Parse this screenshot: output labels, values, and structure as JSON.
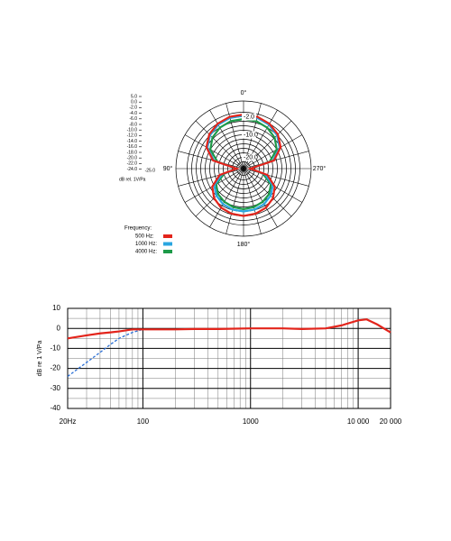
{
  "chart_data": [
    {
      "type": "polar",
      "axis_label": "dB rel. 1V/Pa",
      "legend_title": "Frequency:",
      "rlim": [
        -25,
        5
      ],
      "rticks": [
        {
          "value": 5,
          "label": "5.0"
        },
        {
          "value": 0,
          "label": "0.0"
        },
        {
          "value": -2,
          "label": "-2.0"
        },
        {
          "value": -4,
          "label": "-4.0"
        },
        {
          "value": -6,
          "label": "-6.0"
        },
        {
          "value": -8,
          "label": "-8.0"
        },
        {
          "value": -10,
          "label": "-10.0"
        },
        {
          "value": -12,
          "label": "-12.0"
        },
        {
          "value": -14,
          "label": "-14.0"
        },
        {
          "value": -16,
          "label": "-16.0"
        },
        {
          "value": -18,
          "label": "-18.0"
        },
        {
          "value": -20,
          "label": "-20.0"
        },
        {
          "value": -22,
          "label": "-22.0"
        },
        {
          "value": -24,
          "label": "-24.0"
        },
        {
          "value": -25,
          "label": "-25.0"
        }
      ],
      "ring_labels": [
        {
          "value": -2,
          "label": "-2.0"
        },
        {
          "value": -10,
          "label": "-10.0"
        },
        {
          "value": -20,
          "label": "-20.0"
        }
      ],
      "angle_ticks": [
        {
          "value": 0,
          "label": "0°"
        },
        {
          "value": 90,
          "label": "90°"
        },
        {
          "value": 180,
          "label": "180°"
        },
        {
          "value": 270,
          "label": "270°"
        }
      ],
      "angles": [
        0,
        15,
        30,
        45,
        60,
        75,
        90,
        105,
        120,
        135,
        150,
        165,
        180,
        195,
        210,
        225,
        240,
        255,
        270,
        285,
        300,
        315,
        330,
        345
      ],
      "series": [
        {
          "name": "500 Hz:",
          "color": "#e3241b",
          "values": [
            -1,
            -1.2,
            -2,
            -3.5,
            -6,
            -11,
            -22,
            -14,
            -9,
            -6.5,
            -5,
            -4.3,
            -4,
            -4.3,
            -5,
            -6.5,
            -9,
            -14,
            -22,
            -11,
            -6,
            -3.5,
            -2,
            -1.2
          ]
        },
        {
          "name": "1000 Hz:",
          "color": "#2aa6e0",
          "values": [
            -1.5,
            -1.7,
            -2.5,
            -4,
            -6.5,
            -11.5,
            -22,
            -15,
            -10,
            -8,
            -6.8,
            -6.2,
            -6,
            -6.2,
            -6.8,
            -8,
            -10,
            -15,
            -22,
            -11.5,
            -6.5,
            -4,
            -2.5,
            -1.7
          ]
        },
        {
          "name": "4000 Hz:",
          "color": "#1d9a48",
          "values": [
            -3,
            -3.2,
            -4,
            -5.5,
            -8,
            -13,
            -22,
            -16,
            -11,
            -9,
            -8,
            -7.3,
            -7,
            -7.3,
            -8,
            -9,
            -11,
            -16,
            -22,
            -13,
            -8,
            -5.5,
            -4,
            -3.2
          ]
        }
      ]
    },
    {
      "type": "line",
      "y_label": "dB re 1 V/Pa",
      "log_x": true,
      "xlim": [
        20,
        20000
      ],
      "xticks": [
        {
          "value": 20,
          "label": "20Hz"
        },
        100,
        1000,
        {
          "value": 10000,
          "label": "10 000"
        },
        {
          "value": 20000,
          "label": "20 000"
        }
      ],
      "x_minor_ticks": [
        30,
        40,
        50,
        60,
        70,
        80,
        90,
        200,
        300,
        400,
        500,
        600,
        700,
        800,
        900,
        2000,
        3000,
        4000,
        5000,
        6000,
        7000,
        8000,
        9000
      ],
      "ylim": [
        -40,
        10
      ],
      "yticks": [
        10,
        0,
        -10,
        -20,
        -30,
        -40
      ],
      "y_minor_ticks": [
        5,
        -5,
        -15,
        -25,
        -35
      ],
      "grid": true,
      "series": [
        {
          "color": "#2a6fd6",
          "dashed": true,
          "x": [
            20,
            30,
            40,
            50,
            60,
            80,
            100
          ],
          "values": [
            -24,
            -17,
            -12,
            -8,
            -5,
            -2,
            -0.5
          ]
        },
        {
          "color": "#e3241b",
          "dashed": false,
          "x": [
            20,
            30,
            40,
            50,
            60,
            80,
            100,
            200,
            300,
            500,
            1000,
            2000,
            3000,
            5000,
            7000,
            10000,
            12000,
            15000,
            20000
          ],
          "values": [
            -5,
            -3.5,
            -2.5,
            -2,
            -1.5,
            -0.5,
            -0.5,
            -0.5,
            -0.3,
            -0.3,
            0,
            0,
            -0.3,
            0,
            1.5,
            4,
            4.5,
            2,
            -2
          ]
        }
      ]
    }
  ]
}
